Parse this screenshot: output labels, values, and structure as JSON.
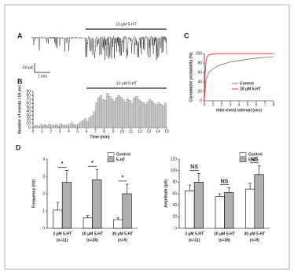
{
  "chart_data": [
    {
      "type": "trace",
      "panel": "A",
      "drug_label": "10 μM 5-HT",
      "scale_y_label": "50 pA",
      "scale_x_label": "1 min"
    },
    {
      "type": "histogram",
      "panel": "B",
      "drug_label": "10 μM 5-HT",
      "drug_start": 6,
      "drug_end": 15,
      "x_label": "Time (min)",
      "y_label": "Number of events / 10 sec",
      "x": [
        0,
        0.25,
        0.5,
        0.75,
        1,
        1.25,
        1.5,
        1.75,
        2,
        2.25,
        2.5,
        2.75,
        3,
        3.25,
        3.5,
        3.75,
        4,
        4.25,
        4.5,
        4.75,
        5,
        5.25,
        5.5,
        5.75,
        6,
        6.25,
        6.5,
        6.75,
        7,
        7.25,
        7.5,
        7.75,
        8,
        8.25,
        8.5,
        8.75,
        9,
        9.25,
        9.5,
        9.75,
        10,
        10.25,
        10.5,
        10.75,
        11,
        11.25,
        11.5,
        11.75,
        12,
        12.25,
        12.5,
        12.75,
        13,
        13.25,
        13.5,
        13.75,
        14,
        14.25,
        14.5,
        14.75
      ],
      "values": [
        4,
        6,
        3,
        8,
        5,
        7,
        4,
        9,
        6,
        5,
        8,
        4,
        10,
        6,
        7,
        5,
        9,
        12,
        8,
        6,
        10,
        14,
        18,
        22,
        15,
        25,
        30,
        40,
        62,
        75,
        80,
        70,
        68,
        85,
        78,
        72,
        66,
        74,
        80,
        76,
        70,
        64,
        72,
        68,
        60,
        74,
        78,
        70,
        66,
        62,
        58,
        64,
        70,
        66,
        60,
        56,
        62,
        58,
        54,
        60
      ],
      "color": "#c8c8c8",
      "xlim": [
        0,
        15
      ],
      "xticks": [
        0,
        1,
        2,
        3,
        4,
        5,
        6,
        7,
        8,
        9,
        10,
        11,
        12,
        13,
        14,
        15
      ],
      "ylim": [
        0,
        90
      ],
      "yticks": [
        0,
        10,
        20,
        30,
        40,
        50,
        60,
        70,
        80,
        90
      ]
    },
    {
      "type": "line",
      "panel": "C",
      "x_label": "Inter-event interval (sec)",
      "y_label": "Cumulative probability (%)",
      "series": [
        {
          "name": "Control",
          "color": "#808080",
          "x": [
            0,
            0.2,
            0.5,
            1,
            1.5,
            2,
            3,
            4,
            5,
            6,
            7,
            8
          ],
          "values": [
            0,
            45,
            60,
            68,
            73,
            77,
            82,
            85,
            88,
            90,
            92,
            93
          ]
        },
        {
          "name": "10 μM 5-HT",
          "color": "#e03030",
          "x": [
            0,
            0.1,
            0.2,
            0.3,
            0.5,
            1,
            2,
            3,
            8
          ],
          "values": [
            0,
            60,
            85,
            93,
            97,
            99,
            100,
            100,
            100
          ]
        }
      ],
      "xlim": [
        0,
        8
      ],
      "xticks": [
        0,
        1,
        2,
        3,
        4,
        5,
        6,
        7,
        8
      ],
      "ylim": [
        0,
        100
      ],
      "yticks": [
        0,
        20,
        40,
        60,
        80,
        100
      ]
    },
    {
      "type": "grouped_bar",
      "panel": "D",
      "y_label": "Frequency (Hz)",
      "categories": [
        "3 μM 5-HT",
        "10 μM 5-HT",
        "30 μM 5-HT"
      ],
      "sublabels": [
        "(n=11)",
        "(n=26)",
        "(n=9)"
      ],
      "series": [
        {
          "name": "Control",
          "color": "#ffffff",
          "values": [
            1.05,
            0.6,
            0.5
          ],
          "errors": [
            0.45,
            0.15,
            0.1
          ]
        },
        {
          "name": "5-HT",
          "color": "#b0b0b0",
          "values": [
            2.65,
            2.8,
            2.0
          ],
          "errors": [
            0.7,
            0.6,
            0.55
          ]
        }
      ],
      "annotations": [
        "*",
        "*",
        "*"
      ],
      "ylim": [
        0,
        4
      ],
      "yticks": [
        0,
        1,
        2,
        3,
        4
      ]
    },
    {
      "type": "grouped_bar",
      "y_label": "Amplitude (pA)",
      "categories": [
        "3 μM 5-HT",
        "10 μM 5-HT",
        "30 μM 5-HT"
      ],
      "sublabels": [
        "(n=11)",
        "(n=26)",
        "(n=9)"
      ],
      "series": [
        {
          "name": "Control",
          "color": "#ffffff",
          "values": [
            65,
            55,
            68
          ],
          "errors": [
            10,
            5,
            10
          ]
        },
        {
          "name": "5-HT",
          "color": "#b0b0b0",
          "values": [
            80,
            62,
            93
          ],
          "errors": [
            15,
            8,
            15
          ]
        }
      ],
      "annotations": [
        "NS",
        "NS",
        "NS"
      ],
      "ylim": [
        0,
        120
      ],
      "yticks": [
        0,
        20,
        40,
        60,
        80,
        100,
        120
      ]
    }
  ]
}
